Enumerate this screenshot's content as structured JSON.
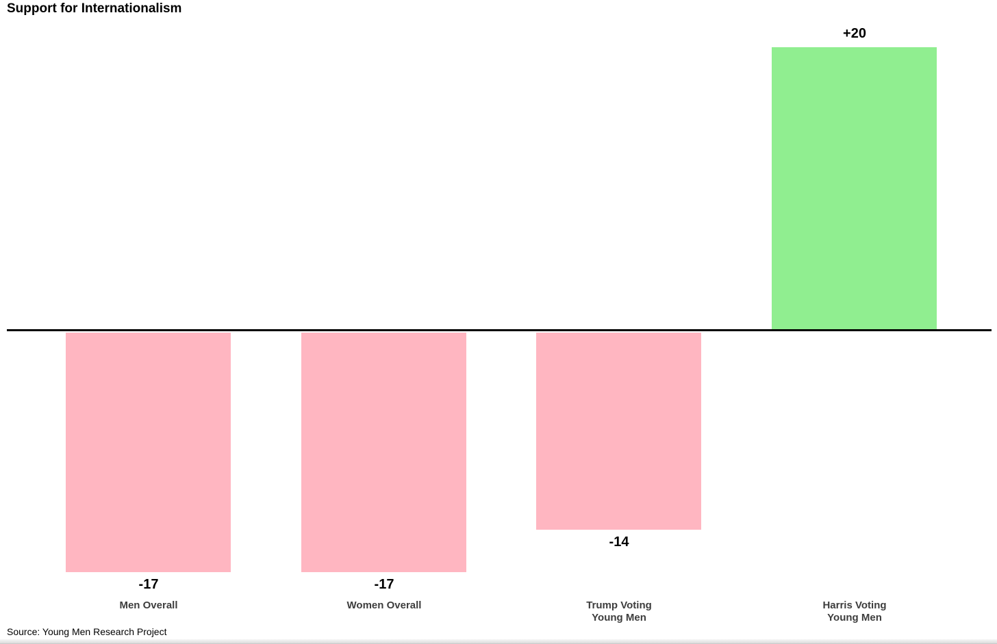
{
  "title": "Support for Internationalism",
  "source": "Source: Young Men Research Project",
  "chart_data": {
    "type": "bar",
    "title": "Support for Internationalism",
    "xlabel": "",
    "ylabel": "",
    "baseline": 0,
    "ylim": [
      -17,
      20
    ],
    "grid": false,
    "legend": false,
    "categories": [
      "Men Overall",
      "Women Overall",
      "Trump Voting\nYoung Men",
      "Harris Voting\nYoung Men"
    ],
    "values": [
      -17,
      -17,
      -14,
      20
    ],
    "value_labels": [
      "-17",
      "-17",
      "-14",
      "+20"
    ],
    "bar_colors": [
      "#FFB6C1",
      "#FFB6C1",
      "#FFB6C1",
      "#90EE90"
    ],
    "colors": {
      "negative_bar": "#FFB6C1",
      "positive_bar": "#90EE90",
      "axis_line": "#000000",
      "value_label_text": "#000000",
      "category_label_text": "#3d3d3d"
    },
    "source": "Source: Young Men Research Project"
  }
}
